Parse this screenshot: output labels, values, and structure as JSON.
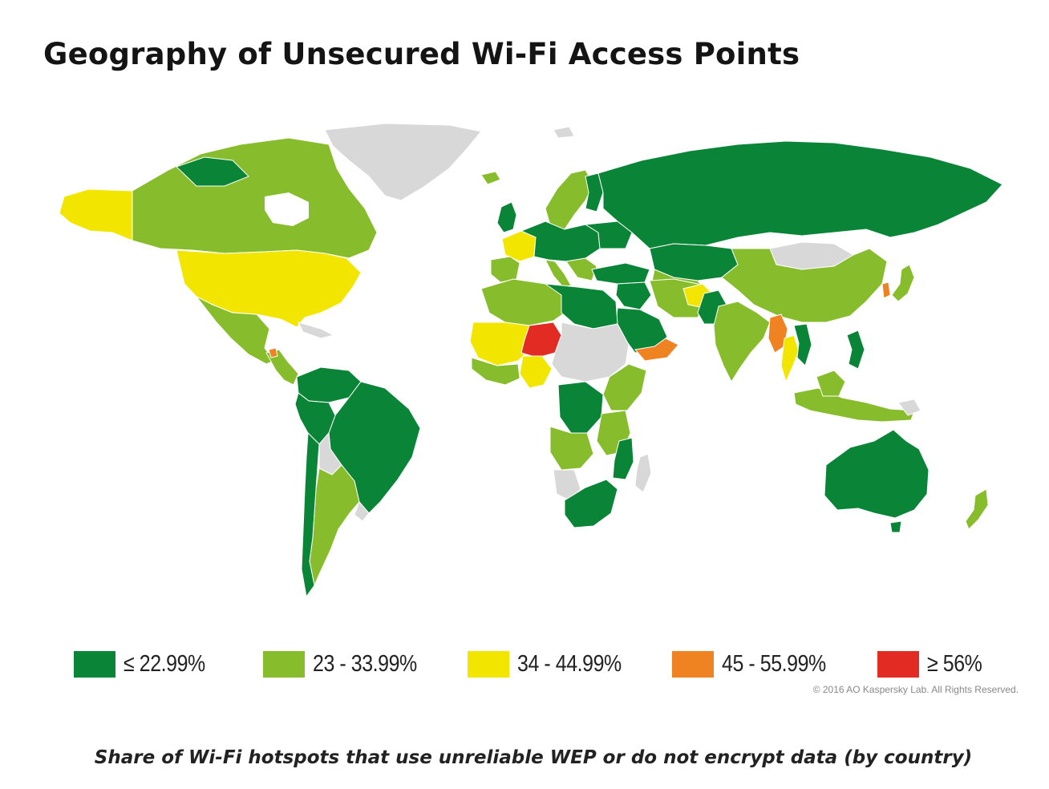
{
  "title": "Geography of Unsecured Wi-Fi Access Points",
  "caption": "Share of Wi-Fi hotspots that use unreliable WEP or do not encrypt data (by country)",
  "copyright": "© 2016 AO Kaspersky Lab. All Rights Reserved.",
  "colors": {
    "band1": "#0a8437",
    "band2": "#87bd2c",
    "band3": "#f2e600",
    "band4": "#f08321",
    "band5": "#e22b22",
    "nodata": "#d8d8d8"
  },
  "legend": [
    {
      "label": "≤ 22.99%",
      "color": "#0a8437"
    },
    {
      "label": "23 - 33.99%",
      "color": "#87bd2c"
    },
    {
      "label": "34 - 44.99%",
      "color": "#f2e600"
    },
    {
      "label": "45 - 55.99%",
      "color": "#f08321"
    },
    {
      "label": "≥ 56%",
      "color": "#e22b22"
    }
  ]
}
